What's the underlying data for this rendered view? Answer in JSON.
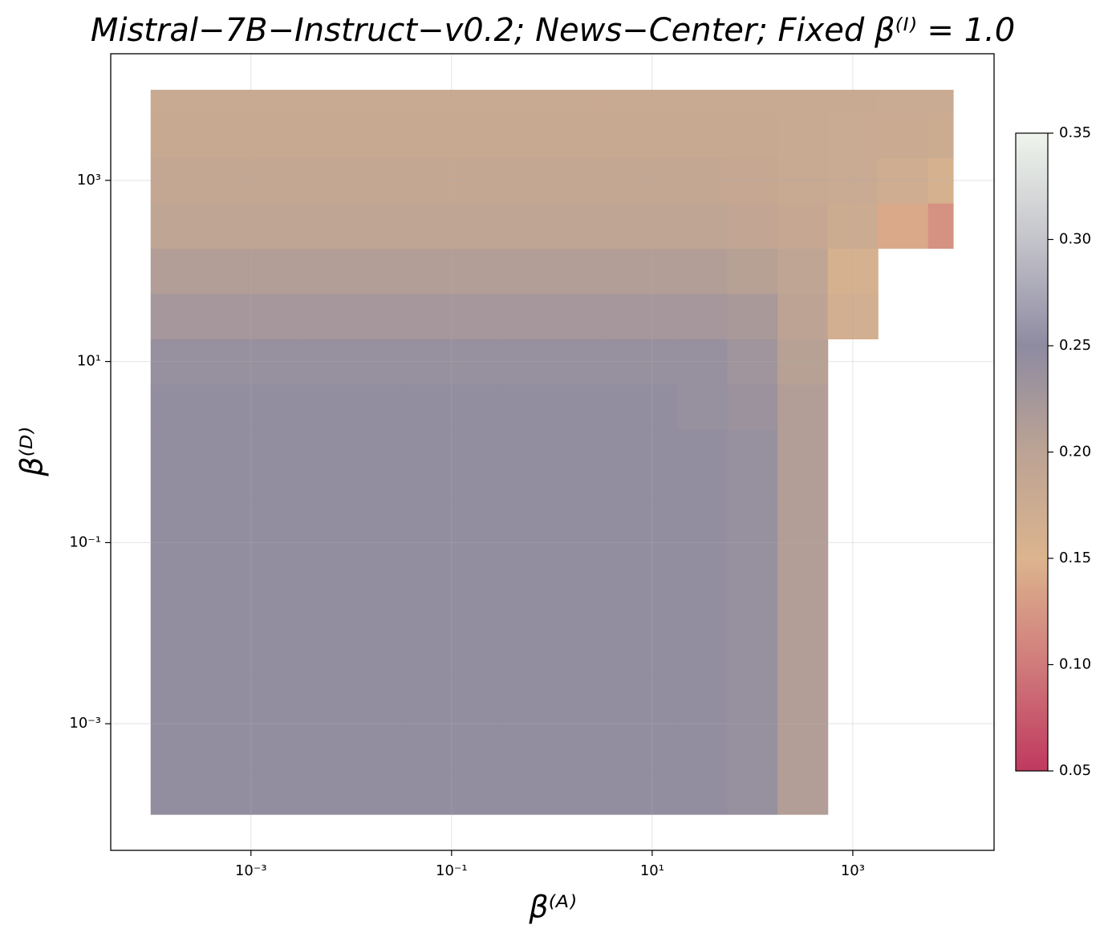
{
  "chart_data": {
    "type": "heatmap",
    "title": "Mistral−7B−Instruct−v0.2;  News−Center;  Fixed β⁽ᴵ⁾ = 1.0",
    "x_label": "β⁽ᴬ⁾",
    "y_label": "β⁽ᴰ⁾",
    "log_x": true,
    "log_y": true,
    "grid": true,
    "xlim": [
      4e-05,
      25600
    ],
    "ylim": [
      4e-05,
      25000
    ],
    "xticks": [
      {
        "value": 0.001,
        "label": "10⁻³"
      },
      {
        "value": 0.1,
        "label": "10⁻¹"
      },
      {
        "value": 10,
        "label": "10¹"
      },
      {
        "value": 1000,
        "label": "10³"
      }
    ],
    "yticks": [
      {
        "value": 0.001,
        "label": "10⁻³"
      },
      {
        "value": 0.1,
        "label": "10⁻¹"
      },
      {
        "value": 10,
        "label": "10¹"
      },
      {
        "value": 1000,
        "label": "10³"
      }
    ],
    "x": [
      0.0001,
      0.001,
      0.01,
      0.1,
      1,
      10,
      31.6,
      100,
      316,
      1000,
      3162,
      10000
    ],
    "y": [
      0.0001,
      0.001,
      0.01,
      0.1,
      1,
      3.16,
      10,
      31.6,
      100,
      316,
      1000,
      3162,
      10000
    ],
    "values": [
      [
        0.245,
        0.245,
        0.245,
        0.245,
        0.245,
        0.245,
        0.245,
        0.24,
        0.21,
        null,
        null,
        null
      ],
      [
        0.245,
        0.245,
        0.245,
        0.245,
        0.245,
        0.245,
        0.245,
        0.24,
        0.21,
        null,
        null,
        null
      ],
      [
        0.245,
        0.245,
        0.245,
        0.245,
        0.245,
        0.245,
        0.245,
        0.24,
        0.21,
        null,
        null,
        null
      ],
      [
        0.245,
        0.245,
        0.245,
        0.245,
        0.245,
        0.245,
        0.245,
        0.24,
        0.21,
        null,
        null,
        null
      ],
      [
        0.245,
        0.245,
        0.245,
        0.245,
        0.245,
        0.245,
        0.245,
        0.24,
        0.21,
        null,
        null,
        null
      ],
      [
        0.245,
        0.245,
        0.245,
        0.245,
        0.245,
        0.245,
        0.24,
        0.235,
        0.21,
        null,
        null,
        null
      ],
      [
        0.24,
        0.24,
        0.24,
        0.24,
        0.24,
        0.24,
        0.24,
        0.23,
        0.205,
        null,
        null,
        null
      ],
      [
        0.225,
        0.225,
        0.225,
        0.225,
        0.225,
        0.225,
        0.225,
        0.22,
        0.2,
        0.165,
        null,
        null
      ],
      [
        0.21,
        0.21,
        0.21,
        0.21,
        0.21,
        0.21,
        0.21,
        0.205,
        0.195,
        0.16,
        null,
        null
      ],
      [
        0.195,
        0.195,
        0.195,
        0.195,
        0.195,
        0.195,
        0.195,
        0.19,
        0.185,
        0.175,
        0.14,
        0.12
      ],
      [
        0.187,
        0.187,
        0.187,
        0.187,
        0.187,
        0.187,
        0.187,
        0.185,
        0.182,
        0.18,
        0.17,
        0.16
      ],
      [
        0.183,
        0.183,
        0.183,
        0.183,
        0.183,
        0.183,
        0.183,
        0.183,
        0.182,
        0.18,
        0.178,
        0.175
      ],
      [
        0.182,
        0.182,
        0.182,
        0.182,
        0.182,
        0.182,
        0.182,
        0.182,
        0.182,
        0.181,
        0.18,
        0.18
      ]
    ],
    "colorbar": {
      "lim": [
        0.05,
        0.35
      ],
      "ticks": [
        0.05,
        {
          "value": 0.1,
          "label": "0.10"
        },
        0.15,
        {
          "value": 0.2,
          "label": "0.20"
        },
        0.25,
        {
          "value": 0.3,
          "label": "0.30"
        },
        0.35
      ],
      "colors": [
        "#c0395f",
        "#d07b7b",
        "#dcb48e",
        "#bca394",
        "#8e8ba1",
        "#c4c4cb",
        "#eff4ec"
      ]
    }
  }
}
